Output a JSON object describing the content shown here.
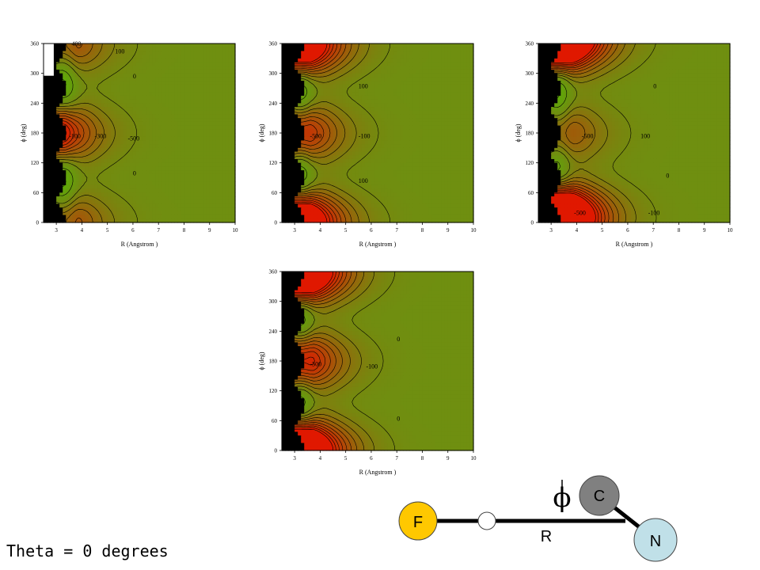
{
  "caption": "Theta = 0 degrees",
  "colors": {
    "red": "#e01800",
    "green": "#4fbf00",
    "olive": "#6f8f10",
    "wall": "#000000",
    "bond": "#000000"
  },
  "chart_data": [
    {
      "type": "heatmap",
      "xlabel": "R (Angstrom )",
      "ylabel": "ϕ (deg)",
      "xlim": [
        2.5,
        10
      ],
      "ylim": [
        0,
        360
      ],
      "xticks": [
        "3",
        "4",
        "5",
        "6",
        "7",
        "8",
        "9",
        "10"
      ],
      "yticks": [
        "0",
        "60",
        "120",
        "180",
        "240",
        "300",
        "360"
      ],
      "grid": false,
      "annotations": [
        "400",
        "100",
        "0",
        "-100",
        "-300",
        "-500",
        "0"
      ],
      "features": [
        {
          "kind": "well",
          "phi": 180,
          "r": 3.3,
          "strength": 1.0
        },
        {
          "kind": "barrier",
          "phi": 360,
          "r": 3.8,
          "strength": 0.9
        }
      ]
    },
    {
      "type": "heatmap",
      "xlabel": "R (Angstrom )",
      "ylabel": "ϕ (deg)",
      "xlim": [
        2.5,
        10
      ],
      "ylim": [
        0,
        360
      ],
      "xticks": [
        "3",
        "4",
        "5",
        "6",
        "7",
        "8",
        "9",
        "10"
      ],
      "yticks": [
        "0",
        "60",
        "120",
        "180",
        "240",
        "300",
        "360"
      ],
      "grid": false,
      "annotations": [
        "100",
        "-500",
        "-100",
        "100"
      ],
      "features": [
        {
          "kind": "well",
          "phi": 180,
          "r": 3.6,
          "strength": 0.8
        },
        {
          "kind": "well",
          "phi": 0,
          "r": 3.6,
          "strength": 0.8
        },
        {
          "kind": "well",
          "phi": 360,
          "r": 3.6,
          "strength": 0.7
        }
      ]
    },
    {
      "type": "heatmap",
      "xlabel": "R (Angstrom )",
      "ylabel": "ϕ (deg)",
      "xlim": [
        2.5,
        10
      ],
      "ylim": [
        0,
        360
      ],
      "xticks": [
        "3",
        "4",
        "5",
        "6",
        "7",
        "8",
        "9",
        "10"
      ],
      "yticks": [
        "0",
        "60",
        "120",
        "180",
        "240",
        "300",
        "360"
      ],
      "grid": false,
      "annotations": [
        "0",
        "-500",
        "100",
        "0",
        "-500",
        "-100"
      ],
      "features": [
        {
          "kind": "well",
          "phi": 360,
          "r": 3.8,
          "strength": 1.0
        },
        {
          "kind": "well",
          "phi": 20,
          "r": 3.8,
          "strength": 1.0
        },
        {
          "kind": "well",
          "phi": 180,
          "r": 3.8,
          "strength": 0.5
        }
      ]
    },
    {
      "type": "heatmap",
      "xlabel": "R (Angstrom )",
      "ylabel": "ϕ (deg)",
      "xlim": [
        2.5,
        10
      ],
      "ylim": [
        0,
        360
      ],
      "xticks": [
        "3",
        "4",
        "5",
        "6",
        "7",
        "8",
        "9",
        "10"
      ],
      "yticks": [
        "0",
        "60",
        "120",
        "180",
        "240",
        "300",
        "360"
      ],
      "grid": false,
      "annotations": [
        "0",
        "-500",
        "-100",
        "0"
      ],
      "features": [
        {
          "kind": "well",
          "phi": 180,
          "r": 3.7,
          "strength": 0.9
        },
        {
          "kind": "well",
          "phi": 0,
          "r": 3.7,
          "strength": 0.9
        },
        {
          "kind": "well",
          "phi": 360,
          "r": 3.7,
          "strength": 0.8
        }
      ]
    }
  ],
  "diagram": {
    "atoms": [
      {
        "label": "F",
        "color": "#ffc800"
      },
      {
        "label": "C",
        "color": "#808080"
      },
      {
        "label": "N",
        "color": "#c0e0e8"
      },
      {
        "label": "",
        "color": "#ffffff"
      }
    ],
    "phi_symbol": "ϕ",
    "r_label": "R"
  }
}
